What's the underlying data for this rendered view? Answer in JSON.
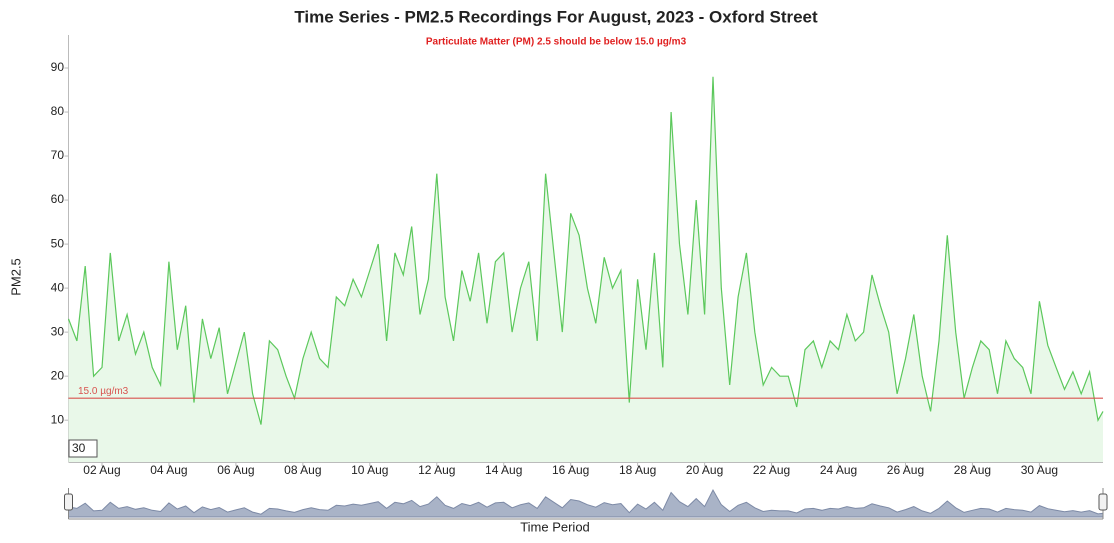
{
  "chart_data": {
    "type": "line",
    "title": "Time Series - PM2.5 Recordings For August, 2023 - Oxford Street",
    "subtitle": "Particulate Matter (PM) 2.5 should be below 15.0 µg/m3",
    "y_label": "PM2.5",
    "x_label": "Time Period",
    "threshold": {
      "value": 15,
      "label": "15.0 µg/m3",
      "color": "#d9534f"
    },
    "roll_period": 30,
    "grid": false,
    "xlim": [
      0,
      30.9
    ],
    "ylim": [
      0.5,
      97.5
    ],
    "xticks": [
      {
        "value": 1,
        "label": "02 Aug"
      },
      {
        "value": 3,
        "label": "04 Aug"
      },
      {
        "value": 5,
        "label": "06 Aug"
      },
      {
        "value": 7,
        "label": "08 Aug"
      },
      {
        "value": 9,
        "label": "10 Aug"
      },
      {
        "value": 11,
        "label": "12 Aug"
      },
      {
        "value": 13,
        "label": "14 Aug"
      },
      {
        "value": 15,
        "label": "16 Aug"
      },
      {
        "value": 17,
        "label": "18 Aug"
      },
      {
        "value": 19,
        "label": "20 Aug"
      },
      {
        "value": 21,
        "label": "22 Aug"
      },
      {
        "value": 23,
        "label": "24 Aug"
      },
      {
        "value": 25,
        "label": "26 Aug"
      },
      {
        "value": 27,
        "label": "28 Aug"
      },
      {
        "value": 29,
        "label": "30 Aug"
      }
    ],
    "yticks": [
      10,
      20,
      30,
      40,
      50,
      60,
      70,
      80,
      90
    ],
    "x": [
      0,
      0.25,
      0.5,
      0.75,
      1,
      1.25,
      1.5,
      1.75,
      2,
      2.25,
      2.5,
      2.75,
      3,
      3.25,
      3.5,
      3.75,
      4,
      4.25,
      4.5,
      4.75,
      5,
      5.25,
      5.5,
      5.75,
      6,
      6.25,
      6.5,
      6.75,
      7,
      7.25,
      7.5,
      7.75,
      8,
      8.25,
      8.5,
      8.75,
      9,
      9.25,
      9.5,
      9.75,
      10,
      10.25,
      10.5,
      10.75,
      11,
      11.25,
      11.5,
      11.75,
      12,
      12.25,
      12.5,
      12.75,
      13,
      13.25,
      13.5,
      13.75,
      14,
      14.25,
      14.5,
      14.75,
      15,
      15.25,
      15.5,
      15.75,
      16,
      16.25,
      16.5,
      16.75,
      17,
      17.25,
      17.5,
      17.75,
      18,
      18.25,
      18.5,
      18.75,
      19,
      19.25,
      19.5,
      19.75,
      20,
      20.25,
      20.5,
      20.75,
      21,
      21.25,
      21.5,
      21.75,
      22,
      22.25,
      22.5,
      22.75,
      23,
      23.25,
      23.5,
      23.75,
      24,
      24.25,
      24.5,
      24.75,
      25,
      25.25,
      25.5,
      25.75,
      26,
      26.25,
      26.5,
      26.75,
      27,
      27.25,
      27.5,
      27.75,
      28,
      28.25,
      28.5,
      28.75,
      29,
      29.25,
      29.5,
      29.75,
      30,
      30.25,
      30.5,
      30.75,
      30.9
    ],
    "series": [
      {
        "name": "PM2.5",
        "color": "#5cc85c",
        "fill": "#e9f8e9",
        "values": [
          33,
          28,
          45,
          20,
          22,
          48,
          28,
          34,
          25,
          30,
          22,
          18,
          46,
          26,
          36,
          14,
          33,
          24,
          31,
          16,
          23,
          30,
          16,
          9,
          28,
          26,
          20,
          15,
          24,
          30,
          24,
          22,
          38,
          36,
          42,
          38,
          44,
          50,
          28,
          48,
          43,
          54,
          34,
          42,
          66,
          38,
          28,
          44,
          37,
          48,
          32,
          46,
          48,
          30,
          40,
          46,
          28,
          66,
          48,
          30,
          57,
          52,
          40,
          32,
          47,
          40,
          44,
          14,
          42,
          26,
          48,
          22,
          80,
          50,
          34,
          60,
          34,
          88,
          40,
          18,
          38,
          48,
          30,
          18,
          22,
          20,
          20,
          13,
          26,
          28,
          22,
          28,
          26,
          34,
          28,
          30,
          43,
          36,
          30,
          16,
          24,
          34,
          20,
          12,
          28,
          52,
          30,
          15,
          22,
          28,
          26,
          16,
          28,
          24,
          22,
          16,
          37,
          27,
          22,
          17,
          21,
          16,
          21,
          10,
          12
        ]
      }
    ]
  }
}
